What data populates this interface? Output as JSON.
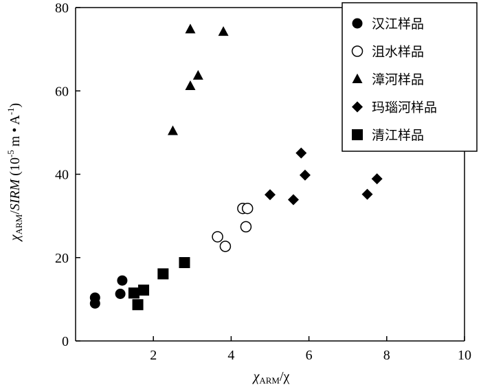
{
  "chart_data": {
    "type": "scatter",
    "xlim": [
      0,
      10
    ],
    "ylim": [
      0,
      80
    ],
    "x_ticks": [
      2,
      4,
      6,
      8,
      10
    ],
    "y_ticks": [
      0,
      20,
      40,
      60,
      80
    ],
    "x_tick_labels": [
      "2",
      "4",
      "6",
      "8",
      "10"
    ],
    "y_tick_labels": [
      "0",
      "20",
      "40",
      "60",
      "80"
    ],
    "xlabel": {
      "main": "χ",
      "sub": "ARM",
      "rest": "/χ"
    },
    "ylabel": {
      "main": "χ",
      "sub": "ARM",
      "slash": "/",
      "italic": "SIRM",
      "open": " (10",
      "exp1": "-5",
      "mid": " m • A",
      "exp2": "-1",
      "close": ")"
    },
    "legend_position": "top-right",
    "series": [
      {
        "name": "汉江样品",
        "marker": "filled-circle",
        "color": "#000000",
        "points": [
          [
            0.5,
            10.4
          ],
          [
            0.5,
            9.0
          ],
          [
            1.2,
            14.5
          ],
          [
            1.15,
            11.3
          ]
        ]
      },
      {
        "name": "沮水样品",
        "marker": "open-circle",
        "color": "#000000",
        "points": [
          [
            3.65,
            25.0
          ],
          [
            3.85,
            22.7
          ],
          [
            4.3,
            31.8
          ],
          [
            4.42,
            31.8
          ],
          [
            4.38,
            27.4
          ]
        ]
      },
      {
        "name": "漳河样品",
        "marker": "filled-triangle",
        "color": "#000000",
        "points": [
          [
            2.95,
            74.8
          ],
          [
            3.8,
            74.2
          ],
          [
            3.15,
            63.7
          ],
          [
            2.95,
            61.2
          ],
          [
            2.5,
            50.4
          ]
        ]
      },
      {
        "name": "玛瑙河样品",
        "marker": "filled-diamond",
        "color": "#000000",
        "points": [
          [
            5.8,
            45.1
          ],
          [
            5.9,
            39.8
          ],
          [
            5.0,
            35.1
          ],
          [
            5.6,
            33.9
          ],
          [
            7.75,
            38.9
          ],
          [
            7.5,
            35.2
          ]
        ]
      },
      {
        "name": "清江样品",
        "marker": "filled-square",
        "color": "#000000",
        "points": [
          [
            2.8,
            18.8
          ],
          [
            2.25,
            16.1
          ],
          [
            1.75,
            12.2
          ],
          [
            1.5,
            11.5
          ],
          [
            1.6,
            8.7
          ]
        ]
      }
    ]
  }
}
